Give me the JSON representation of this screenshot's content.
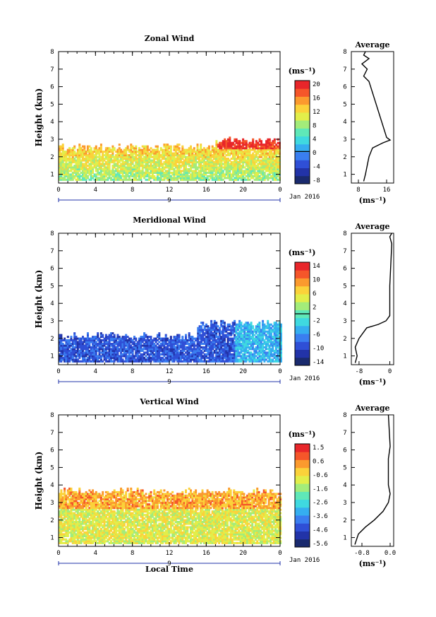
{
  "chart_data": [
    {
      "type": "heatmap",
      "title": "Zonal Wind",
      "ylabel": "Height (km)",
      "ylim": [
        0.5,
        8
      ],
      "yticks": [
        "1",
        "2",
        "3",
        "4",
        "5",
        "6",
        "7",
        "8"
      ],
      "xticks": [
        "0",
        "4",
        "8",
        "12",
        "16",
        "20",
        "0"
      ],
      "xlim": [
        0,
        24
      ],
      "day_label": "9",
      "date_label": "Jan 2016",
      "colorbar": {
        "unit": "(ms⁻¹)",
        "ticks": [
          "20",
          "16",
          "12",
          "8",
          "4",
          "0",
          "-4",
          "-8"
        ],
        "range": [
          -10,
          22
        ],
        "zero_line": 0
      },
      "data_extent": [
        {
          "x_start": 0,
          "x_end": 17,
          "top_km": 2.5
        },
        {
          "x_start": 17,
          "x_end": 24,
          "top_km": 2.9
        }
      ],
      "average": {
        "title": "Average",
        "xticks": [
          "8",
          "16"
        ],
        "xlim": [
          6,
          18
        ],
        "unit": "(ms⁻¹)",
        "profile": [
          [
            9.5,
            0.6
          ],
          [
            10,
            1.0
          ],
          [
            10.5,
            1.5
          ],
          [
            11,
            2.0
          ],
          [
            12,
            2.5
          ],
          [
            15,
            2.8
          ],
          [
            17,
            2.95
          ],
          [
            16,
            3.1
          ],
          [
            11,
            6.3
          ],
          [
            9.5,
            6.6
          ],
          [
            10.5,
            7.0
          ],
          [
            9.0,
            7.3
          ],
          [
            11,
            7.6
          ],
          [
            9.5,
            7.8
          ],
          [
            10,
            8.0
          ]
        ]
      }
    },
    {
      "type": "heatmap",
      "title": "Meridional Wind",
      "ylabel": "Height (km)",
      "ylim": [
        0.5,
        8
      ],
      "yticks": [
        "1",
        "2",
        "3",
        "4",
        "5",
        "6",
        "7",
        "8"
      ],
      "xticks": [
        "0",
        "4",
        "8",
        "12",
        "16",
        "20",
        "0"
      ],
      "xlim": [
        0,
        24
      ],
      "day_label": "9",
      "date_label": "Jan 2016",
      "colorbar": {
        "unit": "(ms⁻¹)",
        "ticks": [
          "14",
          "10",
          "6",
          "2",
          "-2",
          "-6",
          "-10",
          "-14"
        ],
        "range": [
          -16,
          16
        ],
        "zero_line": 0
      },
      "data_extent": [
        {
          "x_start": 0,
          "x_end": 15,
          "top_km": 2.1
        },
        {
          "x_start": 15,
          "x_end": 24,
          "top_km": 2.8
        }
      ],
      "average": {
        "title": "Average",
        "xticks": [
          "-8",
          "0"
        ],
        "xlim": [
          -10,
          1
        ],
        "unit": "(ms⁻¹)",
        "profile": [
          [
            -9,
            0.6
          ],
          [
            -8.5,
            1.0
          ],
          [
            -9,
            1.5
          ],
          [
            -8,
            2.0
          ],
          [
            -6,
            2.6
          ],
          [
            -3,
            2.8
          ],
          [
            -1,
            3.0
          ],
          [
            0,
            3.3
          ],
          [
            0,
            5.0
          ],
          [
            0.5,
            7.4
          ],
          [
            0,
            7.8
          ],
          [
            0.5,
            8.0
          ]
        ]
      }
    },
    {
      "type": "heatmap",
      "title": "Vertical Wind",
      "ylabel": "Height (km)",
      "xlabel": "Local Time",
      "ylim": [
        0.5,
        8
      ],
      "yticks": [
        "1",
        "2",
        "3",
        "4",
        "5",
        "6",
        "7",
        "8"
      ],
      "xticks": [
        "0",
        "4",
        "8",
        "12",
        "16",
        "20",
        "0"
      ],
      "xlim": [
        0,
        24
      ],
      "day_label": "9",
      "date_label": "Jan 2016",
      "colorbar": {
        "unit": "(ms⁻¹)",
        "ticks": [
          "1.5",
          "0.6",
          "-0.6",
          "-1.6",
          "-2.6",
          "-3.6",
          "-4.6",
          "-5.6"
        ],
        "range": [
          -6,
          2
        ]
      },
      "data_extent": [
        {
          "x_start": 0,
          "x_end": 24,
          "top_km": 3.6
        }
      ],
      "average": {
        "title": "Average",
        "xticks": [
          "-0.8",
          "0.0"
        ],
        "xlim": [
          -1.1,
          0.1
        ],
        "unit": "(ms⁻¹)",
        "profile": [
          [
            -1.0,
            0.6
          ],
          [
            -0.9,
            1.2
          ],
          [
            -0.7,
            1.6
          ],
          [
            -0.45,
            2.0
          ],
          [
            -0.2,
            2.5
          ],
          [
            -0.05,
            3.0
          ],
          [
            0,
            3.5
          ],
          [
            -0.05,
            4.0
          ],
          [
            -0.05,
            5.5
          ],
          [
            0,
            6.2
          ],
          [
            -0.05,
            8.0
          ]
        ]
      }
    }
  ]
}
